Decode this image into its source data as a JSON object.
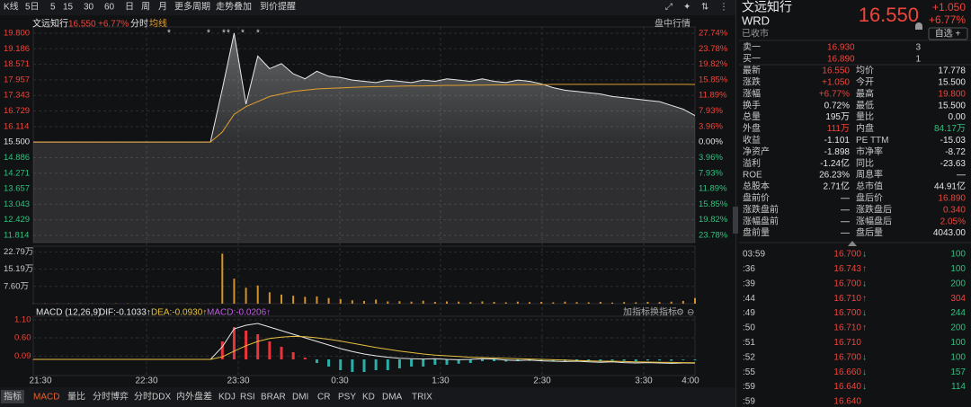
{
  "toolbar": [
    "K线",
    "5日",
    "5",
    "15",
    "30",
    "60",
    "日",
    "周",
    "月",
    "更多周期",
    "走势叠加",
    "到价提醒"
  ],
  "chart": {
    "type": "line",
    "stock_name": "文远知行",
    "price_text": "16.550",
    "change_text": "+6.77%",
    "mode": "分时",
    "avg_label": "均线",
    "panel_button": "盘中行情",
    "markers": [
      "*",
      "*",
      "*",
      "*",
      "*",
      "*"
    ],
    "ylim": [
      11.814,
      19.8
    ],
    "yticks": [
      {
        "value": 19.8,
        "label": "19.800"
      },
      {
        "value": 19.186,
        "label": "19.186"
      },
      {
        "value": 18.571,
        "label": "18.571"
      },
      {
        "value": 17.957,
        "label": "17.957"
      },
      {
        "value": 17.343,
        "label": "17.343"
      },
      {
        "value": 16.729,
        "label": "16.729"
      },
      {
        "value": 16.114,
        "label": "16.114"
      },
      {
        "value": 15.5,
        "label": "15.500"
      },
      {
        "value": 14.886,
        "label": "14.886"
      },
      {
        "value": 14.271,
        "label": "14.271"
      },
      {
        "value": 13.657,
        "label": "13.657"
      },
      {
        "value": 13.043,
        "label": "13.043"
      },
      {
        "value": 12.429,
        "label": "12.429"
      },
      {
        "value": 11.814,
        "label": "11.814"
      }
    ],
    "y2lim": [
      -23.78,
      27.74
    ],
    "y2ticks": [
      {
        "value": 27.74,
        "label": "27.74%"
      },
      {
        "value": 23.78,
        "label": "23.78%"
      },
      {
        "value": 19.82,
        "label": "19.82%"
      },
      {
        "value": 15.85,
        "label": "15.85%"
      },
      {
        "value": 11.89,
        "label": "11.89%"
      },
      {
        "value": 7.93,
        "label": "7.93%"
      },
      {
        "value": 3.96,
        "label": "3.96%"
      },
      {
        "value": 0,
        "label": "0.00%"
      },
      {
        "value": -3.96,
        "label": "3.96%"
      },
      {
        "value": -7.93,
        "label": "7.93%"
      },
      {
        "value": -11.89,
        "label": "11.89%"
      },
      {
        "value": -15.85,
        "label": "15.85%"
      },
      {
        "value": -19.82,
        "label": "19.82%"
      },
      {
        "value": -23.78,
        "label": "23.78%"
      }
    ],
    "up_color": "#f0443a",
    "down_color": "#2ec27e",
    "flat_color": "#e6e6e6",
    "price_color": "#e8e8e8",
    "avg_color": "#e0a030",
    "price_values": [
      15.5,
      15.5,
      15.5,
      15.5,
      15.5,
      15.5,
      15.5,
      15.5,
      15.5,
      15.5,
      15.5,
      15.5,
      15.5,
      15.5,
      15.5,
      15.5,
      17.6,
      19.8,
      17.0,
      18.9,
      18.4,
      18.6,
      18.2,
      18.0,
      18.3,
      18.1,
      18.05,
      17.95,
      17.9,
      17.85,
      17.95,
      17.9,
      17.85,
      17.95,
      17.9,
      18.0,
      17.95,
      17.9,
      18.0,
      17.9,
      17.85,
      17.95,
      17.9,
      17.8,
      17.65,
      17.55,
      17.5,
      17.45,
      17.4,
      17.3,
      17.25,
      17.2,
      17.15,
      17.1,
      16.95,
      16.8,
      16.55
    ],
    "avg_values": [
      15.5,
      15.5,
      15.5,
      15.5,
      15.5,
      15.5,
      15.5,
      15.5,
      15.5,
      15.5,
      15.5,
      15.5,
      15.5,
      15.5,
      15.5,
      15.5,
      15.9,
      16.6,
      16.9,
      17.1,
      17.3,
      17.4,
      17.5,
      17.55,
      17.6,
      17.62,
      17.64,
      17.66,
      17.68,
      17.69,
      17.7,
      17.71,
      17.72,
      17.72,
      17.73,
      17.74,
      17.74,
      17.75,
      17.75,
      17.76,
      17.76,
      17.77,
      17.77,
      17.77,
      17.78,
      17.78,
      17.78,
      17.78,
      17.78,
      17.78,
      17.78,
      17.78,
      17.78,
      17.78,
      17.78,
      17.78,
      17.778
    ],
    "volume": {
      "ylim": [
        0,
        24.5
      ],
      "yticks": [
        {
          "value": 22.79,
          "label": "22.79万"
        },
        {
          "value": 15.19,
          "label": "15.19万"
        },
        {
          "value": 7.6,
          "label": "7.60万"
        }
      ],
      "color": "#d4922a",
      "values": [
        0.1,
        0.1,
        0.1,
        0.1,
        0.1,
        0.1,
        0.1,
        0.1,
        0.1,
        0.1,
        0.1,
        0.1,
        0.1,
        0.1,
        0.1,
        0.1,
        22,
        11,
        7,
        8,
        5,
        4,
        3.5,
        3,
        3.2,
        2.5,
        2,
        1.5,
        1.2,
        1.8,
        1,
        1.1,
        0.9,
        1.3,
        0.8,
        1,
        0.9,
        0.7,
        1,
        0.8,
        0.6,
        0.9,
        0.7,
        0.8,
        0.6,
        0.9,
        0.7,
        0.6,
        0.8,
        0.5,
        0.7,
        0.6,
        0.8,
        0.7,
        0.9,
        1.2,
        2.5
      ]
    },
    "macd": {
      "title": "MACD (12,26,9)",
      "dif_label": "DIF:-0.1033↑",
      "dea_label": "DEA:-0.0930↑",
      "macd_label": "MACD:-0.0206↑",
      "buttons": [
        "加指标",
        "换指标"
      ],
      "ylim": [
        -0.45,
        1.2
      ],
      "yticks": [
        {
          "value": 1.1,
          "label": "1.10"
        },
        {
          "value": 0.6,
          "label": "0.60"
        },
        0.09
      ],
      "dif_color": "#e8e8e8",
      "dea_color": "#e6c040",
      "macd_color": "#c05be0",
      "up_color": "#e8353b",
      "down_color": "#2ab0a8",
      "dif": [
        0,
        0,
        0,
        0,
        0,
        0,
        0,
        0,
        0,
        0,
        0,
        0,
        0,
        0,
        0,
        0,
        0.35,
        0.85,
        0.95,
        1.0,
        0.9,
        0.8,
        0.7,
        0.6,
        0.5,
        0.4,
        0.3,
        0.22,
        0.15,
        0.1,
        0.06,
        0.03,
        0.02,
        0.01,
        0.02,
        0.0,
        -0.01,
        0.0,
        0.02,
        0.01,
        -0.02,
        -0.03,
        -0.02,
        -0.04,
        -0.05,
        -0.06,
        -0.05,
        -0.07,
        -0.08,
        -0.07,
        -0.09,
        -0.1,
        -0.09,
        -0.1,
        -0.11,
        -0.1,
        -0.1033
      ],
      "dea": [
        0,
        0,
        0,
        0,
        0,
        0,
        0,
        0,
        0,
        0,
        0,
        0,
        0,
        0,
        0,
        0,
        0.07,
        0.23,
        0.38,
        0.5,
        0.58,
        0.62,
        0.64,
        0.63,
        0.6,
        0.56,
        0.51,
        0.45,
        0.39,
        0.33,
        0.28,
        0.23,
        0.19,
        0.15,
        0.12,
        0.1,
        0.08,
        0.06,
        0.05,
        0.04,
        0.03,
        0.02,
        0.01,
        0.0,
        -0.01,
        -0.02,
        -0.03,
        -0.04,
        -0.05,
        -0.05,
        -0.06,
        -0.07,
        -0.075,
        -0.08,
        -0.085,
        -0.09,
        -0.093
      ],
      "hist": [
        0,
        0,
        0,
        0,
        0,
        0,
        0,
        0,
        0,
        0,
        0,
        0,
        0,
        0,
        0,
        0,
        0.5,
        0.9,
        0.8,
        0.7,
        0.5,
        0.35,
        0.2,
        0.05,
        -0.1,
        -0.2,
        -0.3,
        -0.35,
        -0.35,
        -0.3,
        -0.3,
        -0.25,
        -0.2,
        -0.2,
        -0.15,
        -0.15,
        -0.12,
        -0.1,
        -0.05,
        -0.05,
        -0.06,
        -0.05,
        -0.04,
        -0.05,
        -0.06,
        -0.05,
        -0.03,
        -0.04,
        -0.04,
        -0.03,
        -0.04,
        -0.05,
        -0.03,
        -0.03,
        -0.04,
        -0.02,
        -0.0206
      ]
    },
    "time_labels": [
      "21:30",
      "22:30",
      "23:30",
      "0:30",
      "1:30",
      "2:30",
      "3:30",
      "4:00"
    ]
  },
  "tabs": [
    "指标",
    "MACD",
    "量比",
    "分时博弈",
    "分时DDX",
    "内外盘差",
    "KDJ",
    "RSI",
    "BRAR",
    "DMI",
    "CR",
    "PSY",
    "KD",
    "DMA",
    "TRIX"
  ],
  "quote": {
    "name": "文远知行",
    "symbol": "WRD",
    "status": "已收市",
    "price": "16.550",
    "change": "+1.050",
    "change_pct": "+6.77%",
    "watch_button": "自选 +",
    "book": [
      {
        "label": "卖一",
        "price": "16.930",
        "qty": "3"
      },
      {
        "label": "买一",
        "price": "16.890",
        "qty": "1"
      }
    ],
    "stats": [
      {
        "l1": "最新",
        "v1": "16.550",
        "c1": "#f0443a",
        "l2": "均价",
        "v2": "17.778",
        "c2": "#e6e6e6"
      },
      {
        "l1": "涨跌",
        "v1": "+1.050",
        "c1": "#f0443a",
        "l2": "今开",
        "v2": "15.500",
        "c2": "#e6e6e6"
      },
      {
        "l1": "涨幅",
        "v1": "+6.77%",
        "c1": "#f0443a",
        "l2": "最高",
        "v2": "19.800",
        "c2": "#f0443a"
      },
      {
        "l1": "换手",
        "v1": "0.72%",
        "c1": "#e6e6e6",
        "l2": "最低",
        "v2": "15.500",
        "c2": "#e6e6e6"
      },
      {
        "l1": "总量",
        "v1": "195万",
        "c1": "#e6e6e6",
        "l2": "量比",
        "v2": "0.00",
        "c2": "#e6e6e6"
      },
      {
        "l1": "外盘",
        "v1": "111万",
        "c1": "#f0443a",
        "l2": "内盘",
        "v2": "84.17万",
        "c2": "#2ec27e"
      },
      {
        "l1": "收益",
        "v1": "-1.101",
        "c1": "#e6e6e6",
        "l2": "PE TTM",
        "v2": "-15.03",
        "c2": "#e6e6e6"
      },
      {
        "l1": "净资产",
        "v1": "-1.898",
        "c1": "#e6e6e6",
        "l2": "市净率",
        "v2": "-8.72",
        "c2": "#e6e6e6"
      },
      {
        "l1": "溢利",
        "v1": "-1.24亿",
        "c1": "#e6e6e6",
        "l2": "同比",
        "v2": "-23.63",
        "c2": "#e6e6e6"
      },
      {
        "l1": "ROE",
        "v1": "26.23%",
        "c1": "#e6e6e6",
        "l2": "周息率",
        "v2": "—",
        "c2": "#e6e6e6"
      },
      {
        "l1": "总股本",
        "v1": "2.71亿",
        "c1": "#e6e6e6",
        "l2": "总市值",
        "v2": "44.91亿",
        "c2": "#e6e6e6"
      },
      {
        "l1": "盘前价",
        "v1": "—",
        "c1": "#e6e6e6",
        "l2": "盘后价",
        "v2": "16.890",
        "c2": "#f0443a"
      },
      {
        "l1": "涨跌盘前",
        "v1": "—",
        "c1": "#e6e6e6",
        "l2": "涨跌盘后",
        "v2": "0.340",
        "c2": "#f0443a"
      },
      {
        "l1": "涨幅盘前",
        "v1": "—",
        "c1": "#e6e6e6",
        "l2": "涨幅盘后",
        "v2": "2.05%",
        "c2": "#f0443a"
      },
      {
        "l1": "盘前量",
        "v1": "—",
        "c1": "#e6e6e6",
        "l2": "盘后量",
        "v2": "4043.00",
        "c2": "#e6e6e6"
      }
    ],
    "trades": [
      {
        "time": "03:59",
        "price": "16.700",
        "arrow": "↓",
        "vol": "100",
        "arrow_color": "#2ec27e",
        "vol_color": "#2ec27e"
      },
      {
        "time": ":36",
        "price": "16.743",
        "arrow": "↑",
        "vol": "100",
        "arrow_color": "#f0443a",
        "vol_color": "#2ec27e"
      },
      {
        "time": ":39",
        "price": "16.700",
        "arrow": "↓",
        "vol": "200",
        "arrow_color": "#2ec27e",
        "vol_color": "#2ec27e"
      },
      {
        "time": ":44",
        "price": "16.710",
        "arrow": "↑",
        "vol": "304",
        "arrow_color": "#f0443a",
        "vol_color": "#f0443a"
      },
      {
        "time": ":49",
        "price": "16.700",
        "arrow": "↓",
        "vol": "244",
        "arrow_color": "#2ec27e",
        "vol_color": "#2ec27e"
      },
      {
        "time": ":50",
        "price": "16.710",
        "arrow": "↑",
        "vol": "200",
        "arrow_color": "#f0443a",
        "vol_color": "#2ec27e"
      },
      {
        "time": ":51",
        "price": "16.710",
        "arrow": "",
        "vol": "100",
        "arrow_color": "#e6e6e6",
        "vol_color": "#2ec27e"
      },
      {
        "time": ":52",
        "price": "16.700",
        "arrow": "↓",
        "vol": "100",
        "arrow_color": "#2ec27e",
        "vol_color": "#2ec27e"
      },
      {
        "time": ":55",
        "price": "16.660",
        "arrow": "↓",
        "vol": "157",
        "arrow_color": "#2ec27e",
        "vol_color": "#2ec27e"
      },
      {
        "time": ":59",
        "price": "16.640",
        "arrow": "↓",
        "vol": "114",
        "arrow_color": "#2ec27e",
        "vol_color": "#2ec27e"
      },
      {
        "time": ":59",
        "price": "16.640",
        "arrow": "",
        "arrow_color": "#e6e6e6"
      }
    ]
  }
}
